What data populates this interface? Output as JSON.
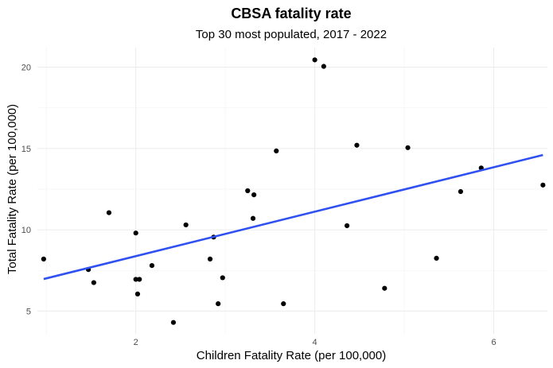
{
  "chart_data": {
    "type": "scatter",
    "title": "CBSA fatality rate",
    "subtitle": "Top 30 most populated, 2017 - 2022",
    "xlabel": "Children Fatality Rate (per 100,000)",
    "ylabel": "Total Fatality Rate (per 100,000)",
    "xlim": [
      0.9,
      6.6
    ],
    "ylim": [
      3.6,
      21.2
    ],
    "x_ticks": [
      2,
      4,
      6
    ],
    "y_ticks": [
      5,
      10,
      15,
      20
    ],
    "grid": true,
    "point_color": "#000000",
    "trend_color": "#3051f0",
    "points": [
      {
        "x": 0.97,
        "y": 8.2
      },
      {
        "x": 1.47,
        "y": 7.55
      },
      {
        "x": 1.53,
        "y": 6.75
      },
      {
        "x": 1.7,
        "y": 11.05
      },
      {
        "x": 2.0,
        "y": 9.8
      },
      {
        "x": 2.0,
        "y": 6.95
      },
      {
        "x": 2.04,
        "y": 6.95
      },
      {
        "x": 2.02,
        "y": 6.05
      },
      {
        "x": 2.18,
        "y": 7.8
      },
      {
        "x": 2.42,
        "y": 4.3
      },
      {
        "x": 2.56,
        "y": 10.3
      },
      {
        "x": 2.83,
        "y": 8.2
      },
      {
        "x": 2.87,
        "y": 9.55
      },
      {
        "x": 2.92,
        "y": 5.45
      },
      {
        "x": 2.97,
        "y": 7.05
      },
      {
        "x": 3.25,
        "y": 12.4
      },
      {
        "x": 3.32,
        "y": 12.15
      },
      {
        "x": 3.31,
        "y": 10.7
      },
      {
        "x": 3.57,
        "y": 14.85
      },
      {
        "x": 3.65,
        "y": 5.45
      },
      {
        "x": 4.0,
        "y": 20.45
      },
      {
        "x": 4.1,
        "y": 20.05
      },
      {
        "x": 4.36,
        "y": 10.25
      },
      {
        "x": 4.47,
        "y": 15.2
      },
      {
        "x": 4.78,
        "y": 6.4
      },
      {
        "x": 5.04,
        "y": 15.05
      },
      {
        "x": 5.36,
        "y": 8.25
      },
      {
        "x": 5.63,
        "y": 12.35
      },
      {
        "x": 5.86,
        "y": 13.8
      },
      {
        "x": 6.55,
        "y": 12.75
      }
    ],
    "trend_line": {
      "x1": 0.97,
      "y1": 6.97,
      "x2": 6.55,
      "y2": 14.6
    }
  }
}
